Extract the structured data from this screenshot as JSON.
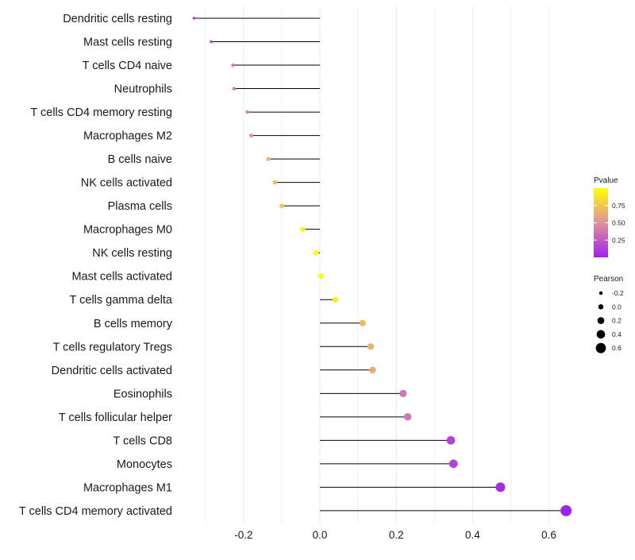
{
  "chart_data": {
    "type": "lollipop",
    "title": "",
    "xlabel": "",
    "ylabel": "",
    "xlim": [
      -0.36,
      0.68
    ],
    "x_ticks": [
      -0.2,
      0.0,
      0.2,
      0.4,
      0.6
    ],
    "x_tick_labels": [
      "-0.2",
      "0.0",
      "0.2",
      "0.4",
      "0.6"
    ],
    "grid": true,
    "categories": [
      "Dendritic cells resting",
      "Mast cells resting",
      "T cells CD4 naive",
      "Neutrophils",
      "T cells CD4 memory resting",
      "Macrophages M2",
      "B cells naive",
      "NK cells activated",
      "Plasma cells",
      "Macrophages M0",
      "NK cells resting",
      "Mast cells activated",
      "T cells gamma delta",
      "B cells memory",
      "T cells regulatory  Tregs ",
      "Dendritic cells activated",
      "Eosinophils",
      "T cells follicular helper",
      "T cells CD8",
      "Monocytes",
      "Macrophages M1",
      "T cells CD4 memory activated"
    ],
    "pearson": [
      -0.33,
      -0.285,
      -0.228,
      -0.225,
      -0.19,
      -0.18,
      -0.135,
      -0.118,
      -0.1,
      -0.045,
      -0.01,
      0.003,
      0.04,
      0.112,
      0.133,
      0.138,
      0.218,
      0.23,
      0.343,
      0.35,
      0.473,
      0.645
    ],
    "pvalue": [
      0.05,
      0.2,
      0.4,
      0.4,
      0.45,
      0.5,
      0.68,
      0.7,
      0.75,
      0.95,
      0.99,
      0.99,
      0.93,
      0.7,
      0.65,
      0.62,
      0.4,
      0.38,
      0.15,
      0.15,
      0.05,
      0.01
    ],
    "legend_position": "right",
    "legends": {
      "color": {
        "title": "Pvalue",
        "ticks": [
          0.25,
          0.5,
          0.75
        ],
        "tick_labels": [
          "0.25",
          "0.50",
          "0.75"
        ],
        "range": [
          0.0,
          1.0
        ],
        "low_color": "#a020f0",
        "mid_color": "#e0919b",
        "high_color": "#ffff00"
      },
      "size": {
        "title": "Pearson",
        "values": [
          -0.2,
          0.0,
          0.2,
          0.4,
          0.6
        ],
        "labels": [
          "-0.2",
          "0.0",
          "0.2",
          "0.4",
          "0.6"
        ],
        "color": "#000000"
      }
    }
  }
}
